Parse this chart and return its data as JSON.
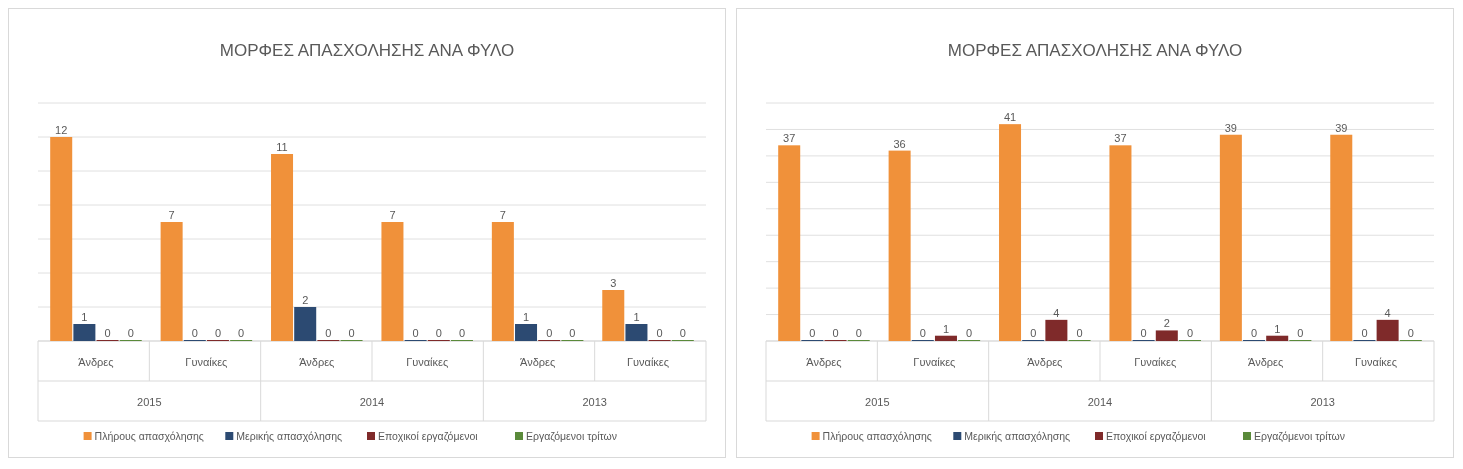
{
  "chart_data": [
    {
      "type": "bar",
      "title": "ΜΟΡΦΕΣ ΑΠΑΣΧΟΛΗΣΗΣ ΑΝΑ ΦΥΛΟ",
      "categories": [
        "Άνδρες",
        "Γυναίκες",
        "Άνδρες",
        "Γυναίκες",
        "Άνδρες",
        "Γυναίκες"
      ],
      "series": [
        {
          "name": "Πλήρους απασχόλησης",
          "color": "#f0913a",
          "values": [
            12,
            7,
            11,
            7,
            7,
            3
          ]
        },
        {
          "name": "Μερικής απασχόλησης",
          "color": "#2c4a72",
          "values": [
            1,
            0,
            2,
            0,
            1,
            1
          ]
        },
        {
          "name": "Εποχικοί εργαζόμενοι",
          "color": "#7f2a2a",
          "values": [
            0,
            0,
            0,
            0,
            0,
            0
          ]
        },
        {
          "name": "Εργαζόμενοι τρίτων",
          "color": "#5a8a3a",
          "values": [
            0,
            0,
            0,
            0,
            0,
            0
          ]
        }
      ],
      "ylim": [
        0,
        14
      ],
      "yticks": [
        {
          "value": 0,
          "label": null
        },
        {
          "value": 2,
          "label": null
        },
        {
          "value": 4,
          "label": null
        },
        {
          "value": 6,
          "label": null
        },
        {
          "value": 8,
          "label": null
        },
        {
          "value": 10,
          "label": null
        },
        {
          "value": 12,
          "label": null
        },
        {
          "value": 14,
          "label": null
        }
      ],
      "grid": "y",
      "tick_labels": "x",
      "data_labels": true,
      "legend": "bottom",
      "annotations": [
        "2015",
        "2014",
        "2013"
      ]
    },
    {
      "type": "bar",
      "title": "ΜΟΡΦΕΣ ΑΠΑΣΧΟΛΗΣΗΣ ΑΝΑ ΦΥΛΟ",
      "categories": [
        "Άνδρες",
        "Γυναίκες",
        "Άνδρες",
        "Γυναίκες",
        "Άνδρες",
        "Γυναίκες"
      ],
      "series": [
        {
          "name": "Πλήρους απασχόλησης",
          "color": "#f0913a",
          "values": [
            37,
            36,
            41,
            37,
            39,
            39
          ]
        },
        {
          "name": "Μερικής απασχόλησης",
          "color": "#2c4a72",
          "values": [
            0,
            0,
            0,
            0,
            0,
            0
          ]
        },
        {
          "name": "Εποχικοί εργαζόμενοι",
          "color": "#7f2a2a",
          "values": [
            0,
            1,
            4,
            2,
            1,
            4
          ]
        },
        {
          "name": "Εργαζόμενοι τρίτων",
          "color": "#5a8a3a",
          "values": [
            0,
            0,
            0,
            0,
            0,
            0
          ]
        }
      ],
      "ylim": [
        0,
        45
      ],
      "yticks": [
        {
          "value": 0,
          "label": null
        },
        {
          "value": 5,
          "label": null
        },
        {
          "value": 10,
          "label": null
        },
        {
          "value": 15,
          "label": null
        },
        {
          "value": 20,
          "label": null
        },
        {
          "value": 25,
          "label": null
        },
        {
          "value": 30,
          "label": null
        },
        {
          "value": 35,
          "label": null
        },
        {
          "value": 40,
          "label": null
        },
        {
          "value": 45,
          "label": null
        }
      ],
      "grid": "y",
      "tick_labels": "x",
      "data_labels": true,
      "legend": "bottom",
      "annotations": [
        "2015",
        "2014",
        "2013"
      ]
    }
  ]
}
